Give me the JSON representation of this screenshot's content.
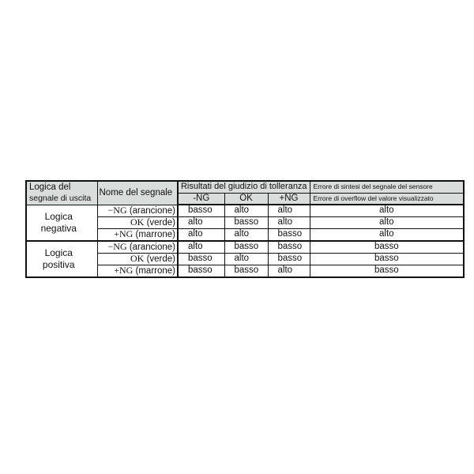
{
  "header": {
    "logic_col": [
      "Logica del",
      "segnale di uscita"
    ],
    "signal_col": "Nome del segnale",
    "results_group": "Risultati del giudizio di tolleranza",
    "results_cols": [
      "-NG",
      "OK",
      "+NG"
    ],
    "error_lines": [
      "Errore di sintesi del segnale del sensore",
      "Errore di overflow del valore visualizzato"
    ]
  },
  "groups": [
    {
      "logic": [
        "Logica",
        "negativa"
      ],
      "rows": [
        {
          "sig": "−NG",
          "color": "(arancione)",
          "ng_minus": "basso",
          "ok": "alto",
          "ng_plus": "alto",
          "error": "alto"
        },
        {
          "sig": "OK",
          "color": "(verde)",
          "ng_minus": "alto",
          "ok": "basso",
          "ng_plus": "alto",
          "error": "alto"
        },
        {
          "sig": "+NG",
          "color": "(marrone)",
          "ng_minus": "alto",
          "ok": "alto",
          "ng_plus": "basso",
          "error": "alto"
        }
      ]
    },
    {
      "logic": [
        "Logica",
        "positiva"
      ],
      "rows": [
        {
          "sig": "−NG",
          "color": "(arancione)",
          "ng_minus": "alto",
          "ok": "basso",
          "ng_plus": "basso",
          "error": "basso"
        },
        {
          "sig": "OK",
          "color": "(verde)",
          "ng_minus": "basso",
          "ok": "alto",
          "ng_plus": "basso",
          "error": "basso"
        },
        {
          "sig": "+NG",
          "color": "(marrone)",
          "ng_minus": "basso",
          "ok": "basso",
          "ng_plus": "alto",
          "error": "basso"
        }
      ]
    }
  ]
}
